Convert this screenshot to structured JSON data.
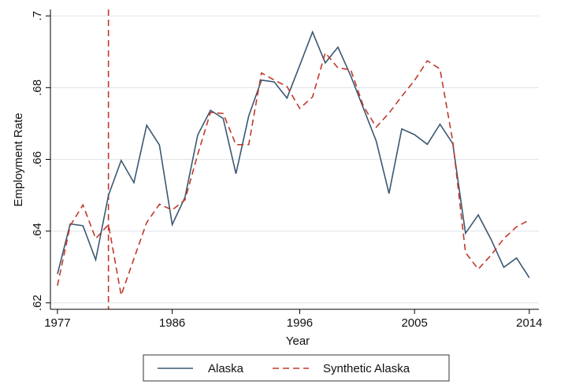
{
  "chart_data": {
    "type": "line",
    "xlabel": "Year",
    "ylabel": "Employment Rate",
    "xlim": [
      1977,
      2014
    ],
    "ylim": [
      0.62,
      0.7
    ],
    "xticks": [
      1977,
      1986,
      1996,
      2005,
      2014
    ],
    "xtick_labels": [
      "1977",
      "1986",
      "1996",
      "2005",
      "2014"
    ],
    "yticks": [
      0.62,
      0.64,
      0.66,
      0.68,
      0.7
    ],
    "ytick_labels": [
      ".62",
      ".64",
      ".66",
      ".68",
      ".7"
    ],
    "grid": "horizontal",
    "legend_position": "bottom",
    "reference_line": {
      "axis": "x",
      "value": 1981,
      "style": "dashed",
      "color": "#c0392b"
    },
    "x": [
      1977,
      1978,
      1979,
      1980,
      1981,
      1982,
      1983,
      1984,
      1985,
      1986,
      1987,
      1988,
      1989,
      1990,
      1991,
      1992,
      1993,
      1994,
      1995,
      1996,
      1997,
      1998,
      1999,
      2000,
      2001,
      2002,
      2003,
      2004,
      2005,
      2006,
      2007,
      2008,
      2009,
      2010,
      2011,
      2012,
      2013,
      2014
    ],
    "series": [
      {
        "name": "Alaska",
        "color": "#3b5873",
        "style": "solid",
        "values": [
          0.628,
          0.642,
          0.6415,
          0.632,
          0.65,
          0.6597,
          0.6535,
          0.6695,
          0.664,
          0.6418,
          0.6494,
          0.6668,
          0.6737,
          0.6714,
          0.656,
          0.6721,
          0.6821,
          0.6816,
          0.6771,
          0.6862,
          0.6955,
          0.6869,
          0.6913,
          0.6833,
          0.6742,
          0.6651,
          0.6505,
          0.6685,
          0.6669,
          0.6642,
          0.6698,
          0.6644,
          0.6394,
          0.6445,
          0.6377,
          0.6299,
          0.6325,
          0.627
        ]
      },
      {
        "name": "Synthetic Alaska",
        "color": "#c0392b",
        "style": "dashed",
        "values": [
          0.6248,
          0.6415,
          0.6473,
          0.6379,
          0.6418,
          0.6221,
          0.6323,
          0.6424,
          0.6475,
          0.6459,
          0.6487,
          0.6614,
          0.6731,
          0.6728,
          0.6641,
          0.6641,
          0.6841,
          0.6821,
          0.6803,
          0.6742,
          0.6774,
          0.6897,
          0.6855,
          0.685,
          0.6748,
          0.669,
          0.6729,
          0.6776,
          0.682,
          0.6875,
          0.6852,
          0.6651,
          0.634,
          0.6294,
          0.6333,
          0.6379,
          0.6412,
          0.6431
        ]
      }
    ]
  },
  "legend": {
    "items": [
      {
        "label": "Alaska",
        "color": "#3b5873",
        "style": "solid"
      },
      {
        "label": "Synthetic Alaska",
        "color": "#c0392b",
        "style": "dashed"
      }
    ]
  },
  "colors": {
    "grid": "#e4e8ec",
    "axis": "#000000",
    "background": "#ffffff"
  }
}
